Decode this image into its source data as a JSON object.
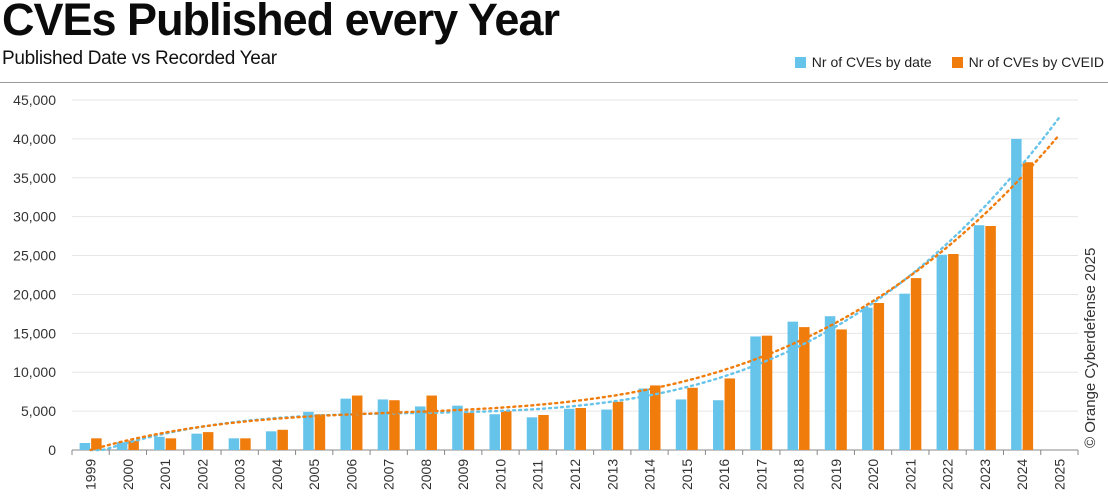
{
  "header": {
    "title": "CVEs Published every Year",
    "subtitle": "Published Date vs Recorded Year"
  },
  "copyright": "© Orange Cyberdefense 2025",
  "colors": {
    "by_date": "#66c3ea",
    "by_cveid": "#f07c0c",
    "grid": "#e6e6e6",
    "axis": "#888888"
  },
  "chart_data": {
    "type": "bar",
    "categories": [
      "1999",
      "2000",
      "2001",
      "2002",
      "2003",
      "2004",
      "2005",
      "2006",
      "2007",
      "2008",
      "2009",
      "2010",
      "2011",
      "2012",
      "2013",
      "2014",
      "2015",
      "2016",
      "2017",
      "2018",
      "2019",
      "2020",
      "2021",
      "2022",
      "2023",
      "2024",
      "2025"
    ],
    "series": [
      {
        "name": "Nr of CVEs by date",
        "color": "#66c3ea",
        "values": [
          900,
          1000,
          1700,
          2100,
          1500,
          2400,
          4900,
          6600,
          6500,
          5600,
          5700,
          4600,
          4200,
          5300,
          5200,
          7900,
          6500,
          6400,
          14600,
          16500,
          17200,
          18300,
          20100,
          25100,
          28900,
          40000,
          null
        ]
      },
      {
        "name": "Nr of CVEs by CVEID",
        "color": "#f07c0c",
        "values": [
          1500,
          1200,
          1500,
          2300,
          1500,
          2600,
          4600,
          7000,
          6400,
          7000,
          4800,
          5000,
          4500,
          5400,
          6200,
          8300,
          8000,
          9200,
          14700,
          15800,
          15500,
          18900,
          22100,
          25200,
          28800,
          37000,
          null
        ]
      }
    ],
    "trendlines": [
      {
        "style": "dotted",
        "color": "#66c3ea",
        "for": "Nr of CVEs by date"
      },
      {
        "style": "dotted",
        "color": "#f07c0c",
        "for": "Nr of CVEs by CVEID"
      }
    ],
    "yticks": [
      "0",
      "5,000",
      "10,000",
      "15,000",
      "20,000",
      "25,000",
      "30,000",
      "35,000",
      "40,000",
      "45,000"
    ],
    "ylim": [
      0,
      45000
    ],
    "legend_position": "top-right",
    "grid": true
  }
}
